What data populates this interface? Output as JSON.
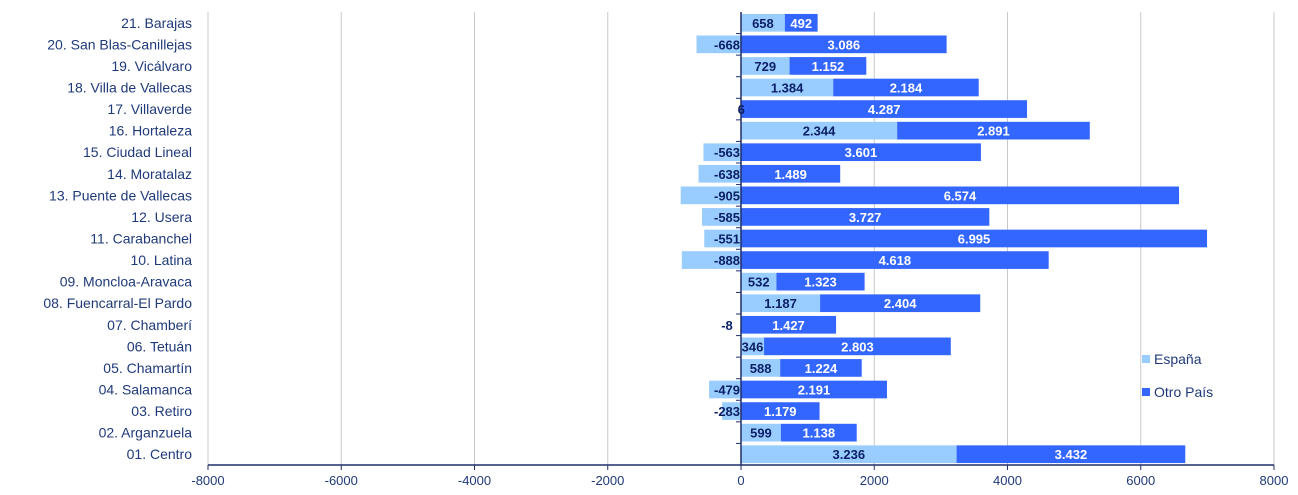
{
  "chart_data": {
    "type": "bar",
    "orientation": "horizontal",
    "stacked": true,
    "categories": [
      "01. Centro",
      "02. Arganzuela",
      "03. Retiro",
      "04. Salamanca",
      "05. Chamartín",
      "06. Tetuán",
      "07. Chamberí",
      "08. Fuencarral-El Pardo",
      "09. Moncloa-Aravaca",
      "10. Latina",
      "11. Carabanchel",
      "12. Usera",
      "13.  Puente de Vallecas",
      "14. Moratalaz",
      "15. Ciudad Lineal",
      "16. Hortaleza",
      "17. Villaverde",
      "18. Villa de Vallecas",
      "19. Vicálvaro",
      "20. San Blas-Canillejas",
      "21. Barajas"
    ],
    "series": [
      {
        "name": "España",
        "values": [
          3236,
          599,
          -283,
          -479,
          588,
          346,
          -8,
          1187,
          532,
          -888,
          -551,
          -585,
          -905,
          -638,
          -563,
          2344,
          6,
          1384,
          729,
          -668,
          658
        ],
        "labels": [
          "3.236",
          "599",
          "-283",
          "-479",
          "588",
          "346",
          "-8",
          "1.187",
          "532",
          "-888",
          "-551",
          "-585",
          "-905",
          "-638",
          "-563",
          "2.344",
          "6",
          "1.384",
          "729",
          "-668",
          "658"
        ],
        "color": "#99ccff"
      },
      {
        "name": "Otro País",
        "values": [
          3432,
          1138,
          1179,
          2191,
          1224,
          2803,
          1427,
          2404,
          1323,
          4618,
          6995,
          3727,
          6574,
          1489,
          3601,
          2891,
          4287,
          2184,
          1152,
          3086,
          492
        ],
        "labels": [
          "3.432",
          "1.138",
          "1.179",
          "2.191",
          "1.224",
          "2.803",
          "1.427",
          "2.404",
          "1.323",
          "4.618",
          "6.995",
          "3.727",
          "6.574",
          "1.489",
          "3.601",
          "2.891",
          "4.287",
          "2.184",
          "1.152",
          "3.086",
          "492"
        ],
        "color": "#3366ff"
      }
    ],
    "xlim": [
      -8000,
      8000
    ],
    "xticks": [
      -8000,
      -6000,
      -4000,
      -2000,
      0,
      2000,
      4000,
      6000,
      8000
    ],
    "grid": true,
    "legend": "right"
  }
}
